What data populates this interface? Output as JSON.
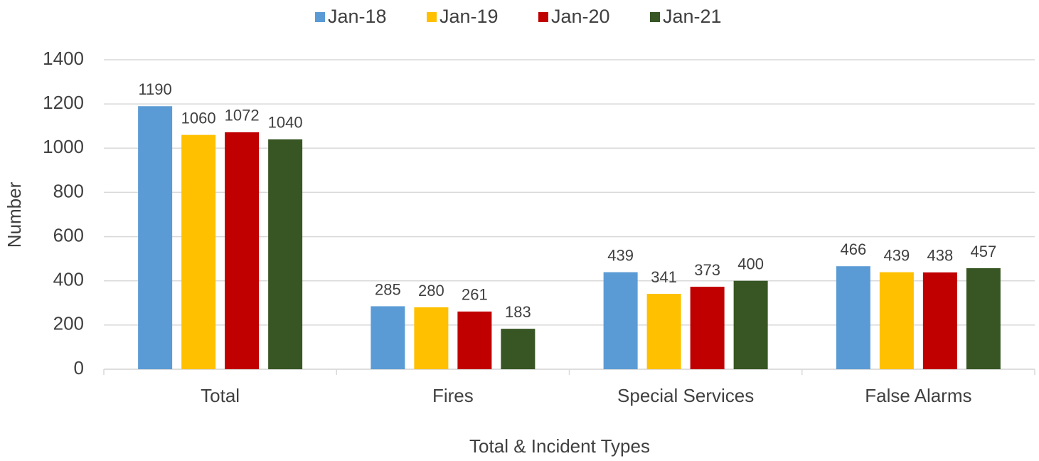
{
  "chart_data": {
    "type": "bar",
    "categories": [
      "Total",
      "Fires",
      "Special Services",
      "False Alarms"
    ],
    "series": [
      {
        "name": "Jan-18",
        "color": "#5b9bd5",
        "values": [
          1190,
          285,
          439,
          466
        ]
      },
      {
        "name": "Jan-19",
        "color": "#ffc000",
        "values": [
          1060,
          280,
          341,
          439
        ]
      },
      {
        "name": "Jan-20",
        "color": "#c00000",
        "values": [
          1072,
          261,
          373,
          438
        ]
      },
      {
        "name": "Jan-21",
        "color": "#375623",
        "values": [
          1040,
          183,
          400,
          457
        ]
      }
    ],
    "y_label": "Number",
    "x_label": "Total & Incident Types",
    "ylim": [
      0,
      1400
    ],
    "yticks": [
      0,
      200,
      400,
      600,
      800,
      1000,
      1200,
      1400
    ],
    "grid": true,
    "legend": "top"
  }
}
